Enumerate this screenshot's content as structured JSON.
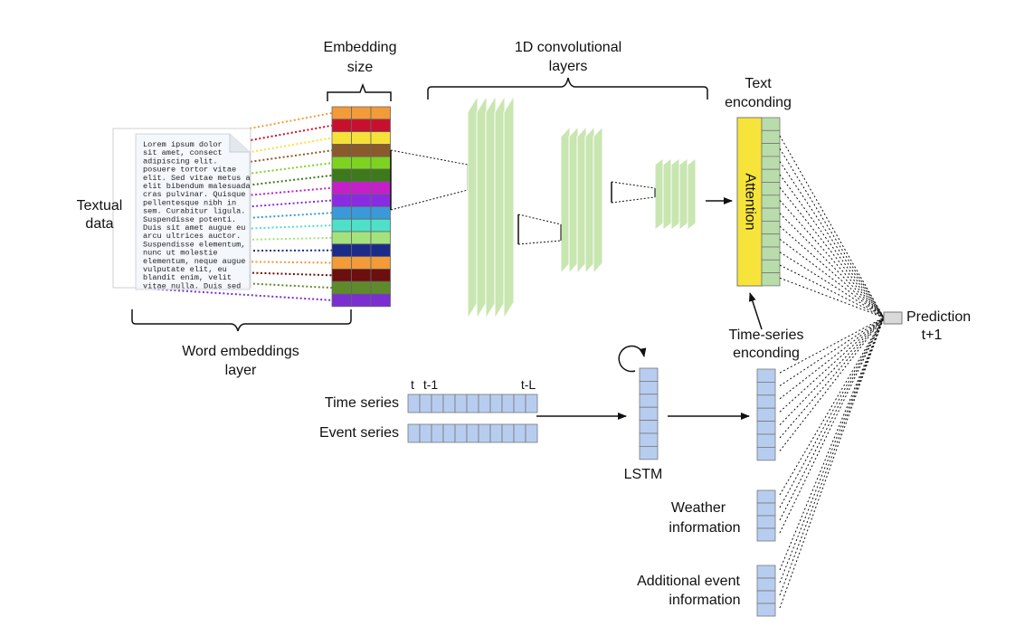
{
  "labels": {
    "textual_data": [
      "Textual",
      "data"
    ],
    "embedding_size": [
      "Embedding",
      "size"
    ],
    "conv_layers": [
      "1D convolutional",
      "layers"
    ],
    "text_encoding": [
      "Text",
      "enconding"
    ],
    "attention": "Attention",
    "word_embeddings": [
      "Word embeddings",
      "layer"
    ],
    "time_series_encoding": [
      "Time-series",
      "enconding"
    ],
    "prediction": [
      "Prediction",
      "t+1"
    ],
    "time_series": "Time series",
    "event_series": "Event series",
    "tick_t": "t",
    "tick_t1": "t-1",
    "tick_tL": "t-L",
    "lstm": "LSTM",
    "weather": [
      "Weather",
      "information"
    ],
    "additional": [
      "Additional event",
      "information"
    ]
  },
  "document_lines": [
    "Lorem ipsum dolor",
    "sit amet, consect",
    "adipiscing elit.",
    "posuere tortor vitae",
    "elit. Sed vitae metus a",
    "elit bibendum malesuada",
    "cras pulvinar. Quisque",
    "pellentesque nibh in",
    "sem. Curabitur ligula.",
    "Suspendisse potenti.",
    "Duis sit amet augue eu",
    "arcu ultrices auctor.",
    "Suspendisse elementum,",
    "nunc ut molestie",
    "elementum, neque augue",
    "vulputate elit, eu",
    "blandit enim, velit",
    "vitae nulla. Duis sed"
  ],
  "embedding_colors": [
    "#f29b38",
    "#c8102e",
    "#f6e13a",
    "#8b5a2b",
    "#7ed321",
    "#3d7a1c",
    "#c51fc9",
    "#8a2be2",
    "#3a9ad9",
    "#4ee0c8",
    "#a4e27e",
    "#1c2b8a",
    "#f29b38",
    "#6b0f0f",
    "#5f8a2b",
    "#7b2fd0"
  ],
  "colors": {
    "conv_fill": "#c8e6b0",
    "cell_blue": "#b7cdf0",
    "cell_green": "#b9ddaa",
    "attention_yellow": "#f7e43a",
    "prediction_box": "#d9d9d9"
  }
}
